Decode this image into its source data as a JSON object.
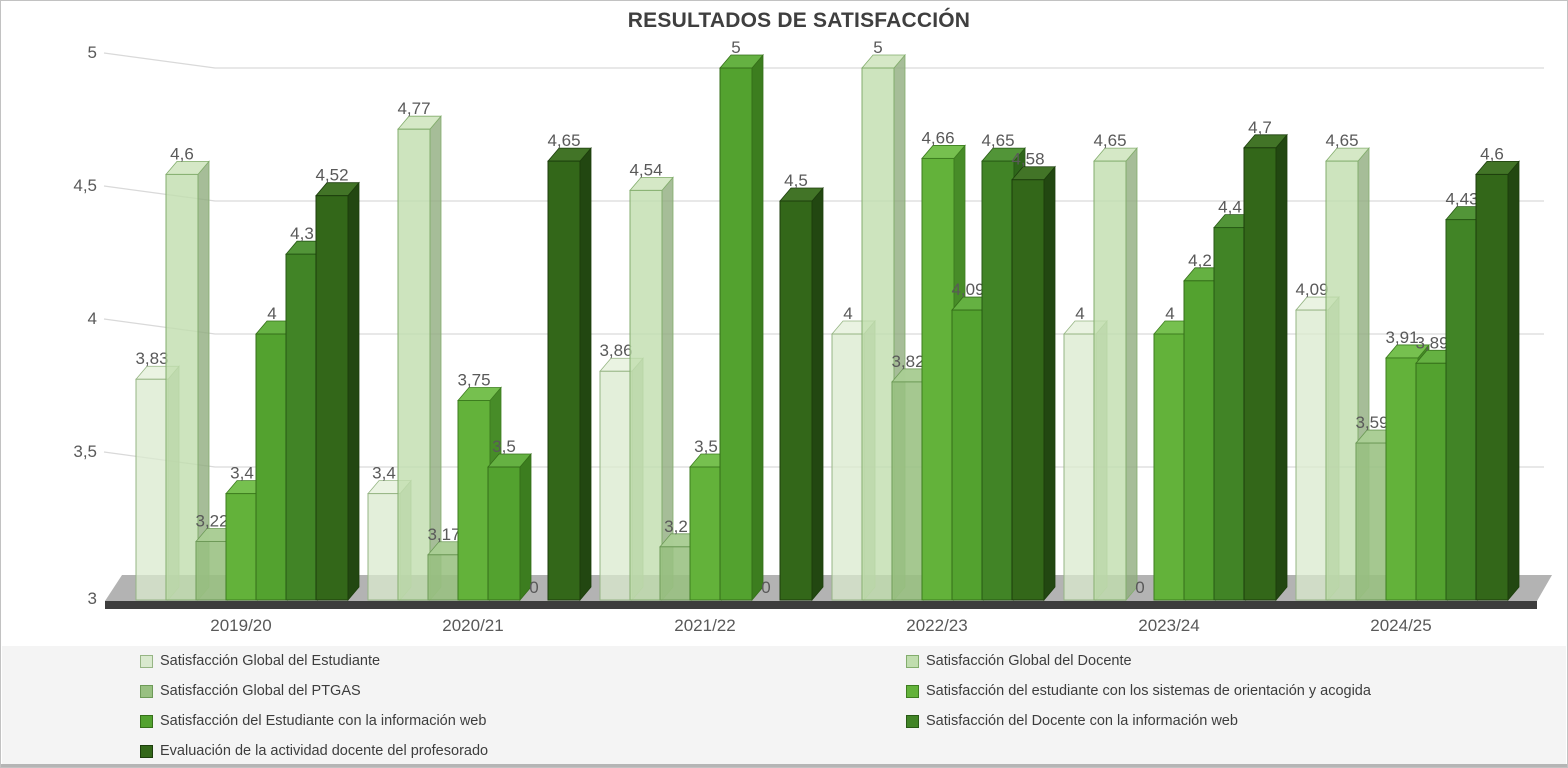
{
  "title": "RESULTADOS DE SATISFACCIÓN",
  "chart_data": {
    "type": "bar",
    "subtype": "3d-clustered-column",
    "title": "RESULTADOS DE SATISFACCIÓN",
    "categories": [
      "2019/20",
      "2020/21",
      "2021/22",
      "2022/23",
      "2023/24",
      "2024/25"
    ],
    "series": [
      {
        "name": "Satisfacción Global del Estudiante",
        "values": [
          3.83,
          3.4,
          3.86,
          4,
          4,
          4.09
        ],
        "labels": [
          "3,83",
          "3,4",
          "3,86",
          "4",
          "4",
          "4,09"
        ],
        "color": "#d9e9ce",
        "top": "#e6f1dd",
        "side": "#a3b996",
        "stroke": "#96b584",
        "alpha": 0.75
      },
      {
        "name": "Satisfacción Global del Docente",
        "values": [
          4.6,
          4.77,
          4.54,
          5,
          4.65,
          4.65
        ],
        "labels": [
          "4,6",
          "4,77",
          "4,54",
          "5",
          "4,65",
          "4,65"
        ],
        "color": "#c0ddae",
        "top": "#d0e6c0",
        "side": "#90ac7e",
        "stroke": "#83ad6d",
        "alpha": 0.8
      },
      {
        "name": "Satisfacción Global del PTGAS",
        "values": [
          3.22,
          3.17,
          3.2,
          3.82,
          0,
          3.59
        ],
        "labels": [
          "3,22",
          "3,17",
          "3,2",
          "3,82",
          "0",
          "3,59"
        ],
        "color": "#98c081",
        "top": "#a9cd94",
        "side": "#739761",
        "stroke": "#6d9a57",
        "alpha": 0.88
      },
      {
        "name": "Satisfacción del estudiante con los sistemas de orientación y acogida",
        "values": [
          3.4,
          3.75,
          3.5,
          4.66,
          4,
          3.91
        ],
        "labels": [
          "3,4",
          "3,75",
          "3,5",
          "4,66",
          "4",
          "3,91"
        ],
        "color": "#63b23a",
        "top": "#76c04f",
        "side": "#478c28",
        "stroke": "#3d7d1f",
        "alpha": 1
      },
      {
        "name": "Satisfacción del Estudiante con la información web",
        "values": [
          4,
          3.5,
          5,
          4.09,
          4.2,
          3.89
        ],
        "labels": [
          "4",
          "3,5",
          "5",
          "4,09",
          "4,2",
          "3,89"
        ],
        "color": "#53a22f",
        "top": "#65b142",
        "side": "#3c7d1f",
        "stroke": "#356f19",
        "alpha": 1
      },
      {
        "name": "Satisfacción del Docente con la información web",
        "values": [
          4.3,
          0,
          0,
          4.65,
          4.4,
          4.43
        ],
        "labels": [
          "4,3",
          "0",
          "0",
          "4,65",
          "4,4",
          "4,43"
        ],
        "color": "#418426",
        "top": "#529538",
        "side": "#2e661a",
        "stroke": "#275914",
        "alpha": 1
      },
      {
        "name": "Evaluación de la actividad docente del profesorado",
        "values": [
          4.52,
          4.65,
          4.5,
          4.58,
          4.7,
          4.6
        ],
        "labels": [
          "4,52",
          "4,65",
          "4,5",
          "4,58",
          "4,7",
          "4,6"
        ],
        "color": "#336719",
        "top": "#427427",
        "side": "#224711",
        "stroke": "#1c3d0c",
        "alpha": 1
      }
    ],
    "y_axis": {
      "min": 3,
      "max": 5,
      "step": 0.5,
      "ticks": [
        3,
        3.5,
        4,
        4.5,
        5
      ],
      "tick_labels": [
        "3",
        "3,5",
        "4",
        "4,5",
        "5"
      ]
    },
    "grid": true,
    "legend_position": "bottom",
    "styles": {
      "grid_color": "#d9d9d9",
      "floor_top_color": "#b3b3b3",
      "floor_front_color": "#3d3d3d",
      "label_color": "#595959",
      "title_color": "#3f3f3f",
      "legend_background": "#f4f4f4"
    }
  }
}
